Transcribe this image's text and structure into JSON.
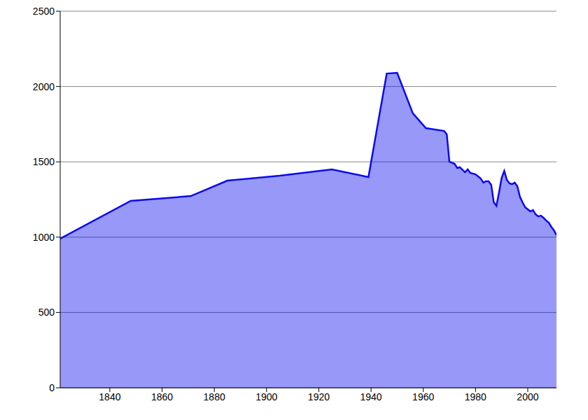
{
  "chart_data": {
    "type": "area",
    "x": [
      1821,
      1848,
      1871,
      1885,
      1905,
      1925,
      1939,
      1946,
      1950,
      1956,
      1961,
      1968,
      1969,
      1970,
      1972,
      1973,
      1974,
      1976,
      1977,
      1978,
      1980,
      1981,
      1982,
      1983,
      1984,
      1985,
      1986,
      1987,
      1988,
      1989,
      1990,
      1991,
      1992,
      1993,
      1994,
      1995,
      1996,
      1997,
      1998,
      1999,
      2000,
      2001,
      2002,
      2003,
      2004,
      2005,
      2006,
      2007,
      2008,
      2009,
      2010,
      2011
    ],
    "values": [
      990,
      1241,
      1273,
      1375,
      1408,
      1450,
      1399,
      2086,
      2091,
      1822,
      1724,
      1705,
      1682,
      1501,
      1487,
      1459,
      1464,
      1431,
      1450,
      1427,
      1417,
      1403,
      1389,
      1362,
      1371,
      1371,
      1348,
      1231,
      1208,
      1296,
      1394,
      1440,
      1380,
      1357,
      1352,
      1362,
      1338,
      1268,
      1231,
      1199,
      1185,
      1171,
      1180,
      1152,
      1138,
      1143,
      1129,
      1111,
      1097,
      1069,
      1046,
      1013
    ],
    "color": "#0a0aee",
    "xlim": [
      1821,
      2011
    ],
    "ylim": [
      0,
      2500
    ],
    "xticks": [
      1840,
      1860,
      1880,
      1900,
      1920,
      1940,
      1960,
      1980,
      2000
    ],
    "yticks": [
      0,
      500,
      1000,
      1500,
      2000,
      2500
    ],
    "grid": true
  }
}
